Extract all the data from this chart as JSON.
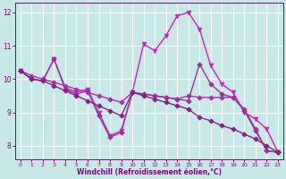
{
  "lines": [
    {
      "x": [
        0,
        1,
        2,
        3,
        4,
        5,
        6,
        7,
        8,
        9,
        10,
        11,
        12,
        13,
        14,
        15,
        16,
        17,
        18,
        19,
        20,
        21,
        22,
        23
      ],
      "y": [
        10.25,
        10.1,
        10.0,
        9.9,
        9.8,
        9.7,
        9.6,
        9.5,
        9.4,
        9.3,
        9.6,
        9.55,
        9.5,
        9.45,
        9.4,
        9.5,
        9.45,
        9.45,
        9.45,
        9.45,
        9.1,
        8.5,
        7.85,
        7.8
      ],
      "color": "#aa33aa",
      "marker": "D",
      "markersize": 2.8,
      "linewidth": 1.0
    },
    {
      "x": [
        0,
        1,
        2,
        3,
        4,
        5,
        6,
        7,
        8,
        9,
        10,
        11,
        12,
        13,
        14,
        15,
        16,
        17,
        18,
        19,
        20,
        21,
        22,
        23
      ],
      "y": [
        10.25,
        10.0,
        9.95,
        10.6,
        9.75,
        9.6,
        9.7,
        9.0,
        8.3,
        8.45,
        9.6,
        11.05,
        10.85,
        11.3,
        11.9,
        12.0,
        11.5,
        10.4,
        9.85,
        9.6,
        9.0,
        8.8,
        8.5,
        7.8
      ],
      "color": "#cc22bb",
      "marker": "v",
      "markersize": 3.5,
      "linewidth": 1.0
    },
    {
      "x": [
        0,
        1,
        2,
        3,
        4,
        5,
        6,
        7,
        8,
        9,
        10,
        11,
        12,
        13,
        14,
        15,
        16,
        17,
        18,
        19,
        20,
        21,
        22,
        23
      ],
      "y": [
        10.25,
        10.0,
        9.95,
        10.6,
        9.7,
        9.55,
        9.65,
        8.9,
        8.25,
        8.4,
        9.6,
        9.55,
        9.5,
        9.45,
        9.4,
        9.35,
        10.45,
        9.85,
        9.55,
        9.45,
        9.05,
        8.45,
        7.85,
        7.8
      ],
      "color": "#993399",
      "marker": "D",
      "markersize": 2.8,
      "linewidth": 1.0
    },
    {
      "x": [
        0,
        1,
        2,
        3,
        4,
        5,
        6,
        7,
        8,
        9,
        10,
        11,
        12,
        13,
        14,
        15,
        16,
        17,
        18,
        19,
        20,
        21,
        22,
        23
      ],
      "y": [
        10.25,
        10.0,
        9.95,
        9.8,
        9.65,
        9.5,
        9.35,
        9.2,
        9.05,
        8.9,
        9.6,
        9.5,
        9.4,
        9.3,
        9.2,
        9.1,
        8.85,
        8.75,
        8.6,
        8.5,
        8.35,
        8.2,
        8.0,
        7.8
      ],
      "color": "#882288",
      "marker": "D",
      "markersize": 2.8,
      "linewidth": 1.0
    }
  ],
  "xlim": [
    -0.5,
    23.5
  ],
  "ylim": [
    7.6,
    12.3
  ],
  "xlabel": "Windchill (Refroidissement éolien,°C)",
  "yticks": [
    8,
    9,
    10,
    11,
    12
  ],
  "xticks": [
    0,
    1,
    2,
    3,
    4,
    5,
    6,
    7,
    8,
    9,
    10,
    11,
    12,
    13,
    14,
    15,
    16,
    17,
    18,
    19,
    20,
    21,
    22,
    23
  ],
  "background_color": "#c8e8e8",
  "grid_color": "#ffffff",
  "tick_color": "#880088",
  "label_color": "#880088"
}
